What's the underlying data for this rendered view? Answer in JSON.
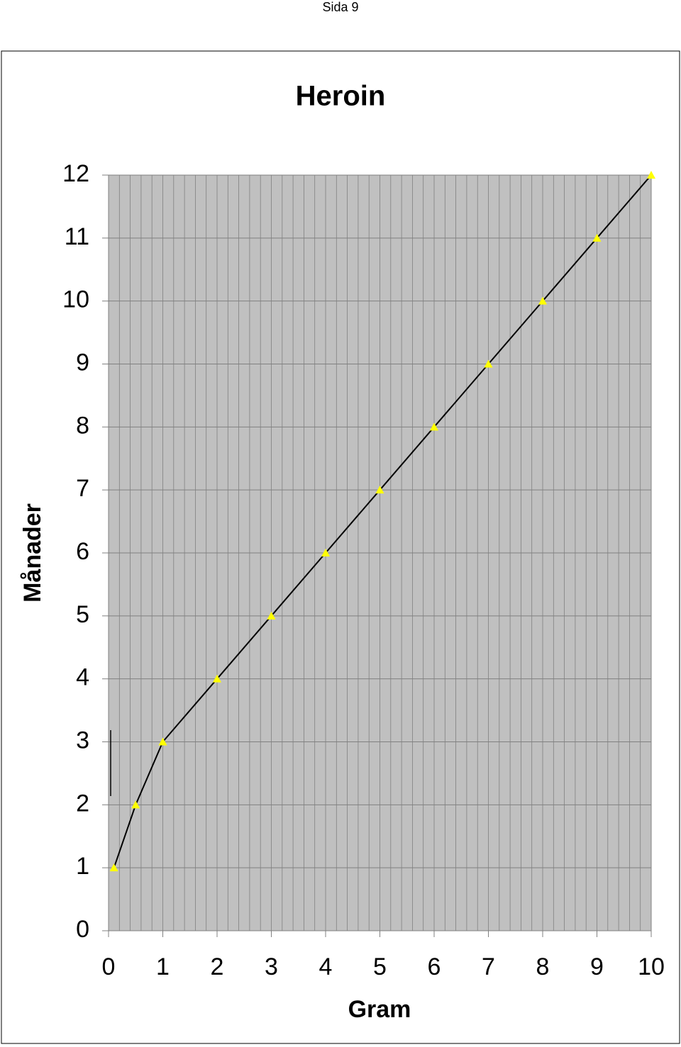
{
  "page_header": "Sida 9",
  "chart_data": {
    "type": "line",
    "title": "Heroin",
    "x_label": "Gram",
    "y_label": "Månader",
    "x": [
      0.1,
      0.5,
      1,
      2,
      3,
      4,
      5,
      6,
      7,
      8,
      9,
      10
    ],
    "series": [
      {
        "name": "Heroin",
        "color": "#000000",
        "marker_color": "#ffff00",
        "values": [
          1,
          2,
          3,
          4,
          5,
          6,
          7,
          8,
          9,
          10,
          11,
          12
        ]
      }
    ],
    "xlim": [
      0,
      10
    ],
    "xticks": [
      0,
      1,
      2,
      3,
      4,
      5,
      6,
      7,
      8,
      9,
      10
    ],
    "ylim": [
      0,
      12
    ],
    "yticks": [
      0,
      1,
      2,
      3,
      4,
      5,
      6,
      7,
      8,
      9,
      10,
      11,
      12
    ],
    "grid": true,
    "x_minor_grid_step": 0.2,
    "plot_background": "#c0c0c0",
    "legend": false
  }
}
